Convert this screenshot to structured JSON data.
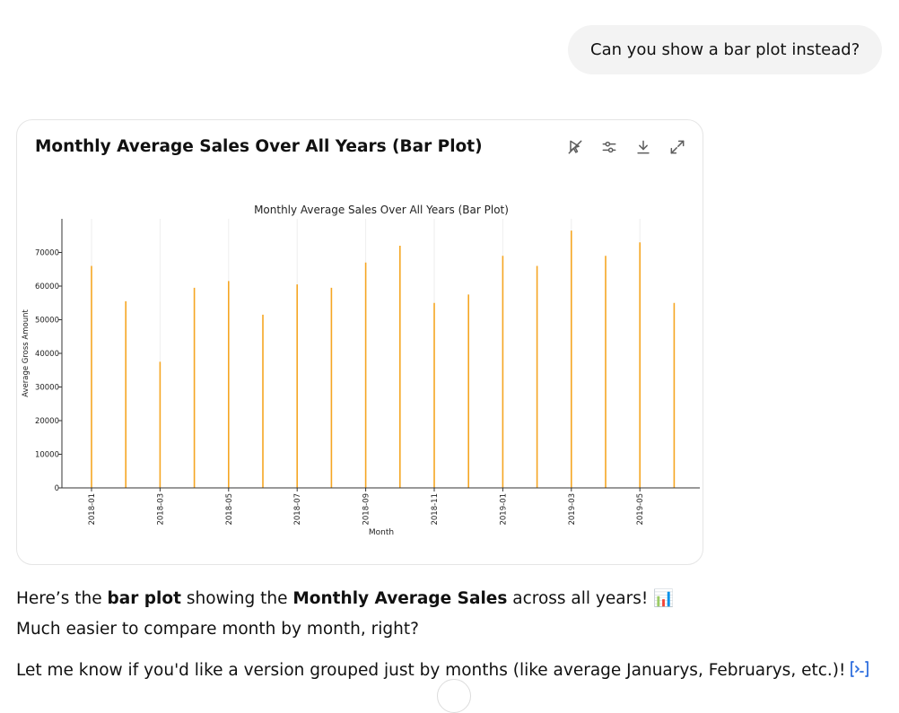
{
  "user_message": "Can you show a bar plot instead?",
  "card": {
    "title": "Monthly Average Sales Over All Years (Bar Plot)",
    "actions": [
      "interactive-off-icon",
      "chart-settings-icon",
      "download-icon",
      "expand-icon"
    ]
  },
  "chart_data": {
    "type": "bar",
    "title": "Monthly Average Sales Over All Years (Bar Plot)",
    "xlabel": "Month",
    "ylabel": "Average Gross Amount",
    "ylim": [
      0,
      80000
    ],
    "yticks": [
      0,
      10000,
      20000,
      30000,
      40000,
      50000,
      60000,
      70000
    ],
    "xtick_labels": [
      "2018-01",
      "2018-03",
      "2018-05",
      "2018-07",
      "2018-09",
      "2018-11",
      "2019-01",
      "2019-03",
      "2019-05"
    ],
    "bar_color": "#f5a623",
    "grid": true,
    "categories": [
      "2018-01",
      "2018-02",
      "2018-03",
      "2018-04",
      "2018-05",
      "2018-06",
      "2018-07",
      "2018-08",
      "2018-09",
      "2018-10",
      "2018-11",
      "2018-12",
      "2019-01",
      "2019-02",
      "2019-03",
      "2019-04",
      "2019-05",
      "2019-06"
    ],
    "values": [
      66000,
      55500,
      37500,
      59500,
      61500,
      51500,
      60500,
      59500,
      67000,
      72000,
      55000,
      57500,
      69000,
      66000,
      76500,
      69000,
      73000,
      55000
    ]
  },
  "reply": {
    "line1_pre": "Here’s the ",
    "line1_bold1": "bar plot",
    "line1_mid": " showing the ",
    "line1_bold2": "Monthly Average Sales",
    "line1_post": " across all years! 📊",
    "line2": "Much easier to compare month by month, right?",
    "line3": "Let me know if you'd like a version grouped just by months (like average Januarys, Februarys, etc.)!"
  }
}
